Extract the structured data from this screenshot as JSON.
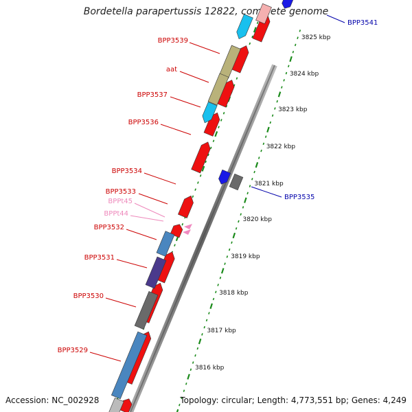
{
  "title": "Bordetella parapertussis 12822, complete genome",
  "footer": {
    "accession": "Accession: NC_002928",
    "topology": "Topology: circular; Length: 4,773,551 bp; Genes: 4,249"
  },
  "colors": {
    "red_gene": "#ee1111",
    "blue_gene": "#1a1ae6",
    "cyan_gene": "#19c0ee",
    "olive_gene": "#b9b27a",
    "steel_gene": "#4a86bf",
    "indigo_gene": "#4a3a8c",
    "gray_gene": "#6a6a6a",
    "pink_trna": "#f08ac0",
    "backbone": "#888888",
    "tick": "#1a8a1a",
    "label_red": "#cc0000",
    "label_blue": "#0000aa",
    "label_pink": "#ee88bb"
  },
  "scale_labels": [
    {
      "kbp": 3825,
      "text": "3825 kbp"
    },
    {
      "kbp": 3824,
      "text": "3824 kbp"
    },
    {
      "kbp": 3823,
      "text": "3823 kbp"
    },
    {
      "kbp": 3822,
      "text": "3822 kbp"
    },
    {
      "kbp": 3821,
      "text": "3821 kbp"
    },
    {
      "kbp": 3820,
      "text": "3820 kbp"
    },
    {
      "kbp": 3819,
      "text": "3819 kbp"
    },
    {
      "kbp": 3818,
      "text": "3818 kbp"
    },
    {
      "kbp": 3817,
      "text": "3817 kbp"
    },
    {
      "kbp": 3816,
      "text": "3816 kbp"
    }
  ],
  "gene_labels": [
    {
      "name": "BPP3541",
      "color": "blue"
    },
    {
      "name": "BPP3539",
      "color": "red"
    },
    {
      "name": "aat",
      "color": "red"
    },
    {
      "name": "BPP3537",
      "color": "red"
    },
    {
      "name": "BPP3536",
      "color": "red"
    },
    {
      "name": "BPP3534",
      "color": "red"
    },
    {
      "name": "BPP3535",
      "color": "blue"
    },
    {
      "name": "BPP3533",
      "color": "red"
    },
    {
      "name": "BPPt45",
      "color": "pink"
    },
    {
      "name": "BPPt44",
      "color": "pink"
    },
    {
      "name": "BPP3532",
      "color": "red"
    },
    {
      "name": "BPP3531",
      "color": "red"
    },
    {
      "name": "BPP3530",
      "color": "red"
    },
    {
      "name": "BPP3529",
      "color": "red"
    }
  ]
}
